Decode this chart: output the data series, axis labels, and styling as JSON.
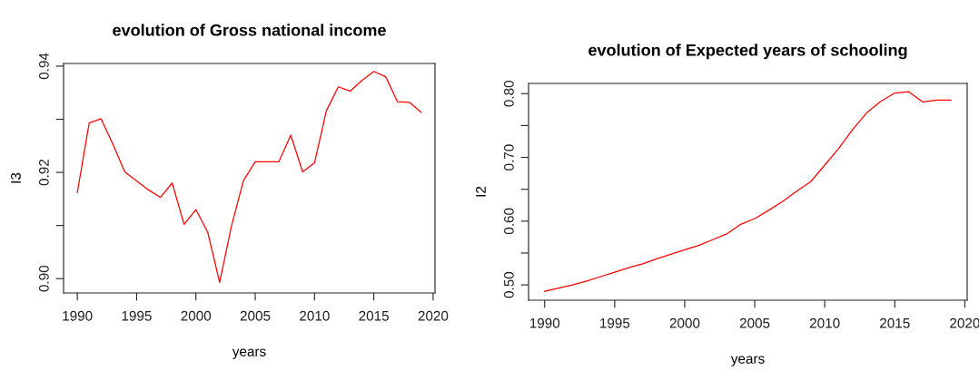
{
  "chart_data": [
    {
      "type": "line",
      "title": "evolution of Gross national income",
      "xlabel": "years",
      "ylabel": "I3",
      "x": [
        1990,
        1991,
        1992,
        1993,
        1994,
        1995,
        1996,
        1997,
        1998,
        1999,
        2000,
        2001,
        2002,
        2003,
        2004,
        2005,
        2006,
        2007,
        2008,
        2009,
        2010,
        2011,
        2012,
        2013,
        2014,
        2015,
        2016,
        2017,
        2018,
        2019
      ],
      "series": [
        {
          "color": "#ff0000",
          "values": [
            0.9162,
            0.9293,
            0.9301,
            0.9253,
            0.9201,
            0.9184,
            0.9167,
            0.9153,
            0.918,
            0.9102,
            0.913,
            0.9087,
            0.8993,
            0.9099,
            0.9184,
            0.922,
            0.922,
            0.922,
            0.927,
            0.9201,
            0.9218,
            0.9316,
            0.9361,
            0.9353,
            0.9373,
            0.939,
            0.938,
            0.9333,
            0.9332,
            0.9313
          ]
        }
      ],
      "xlim": [
        1988.84,
        2020.16
      ],
      "ylim": [
        0.8973,
        0.9405
      ],
      "xticks": [
        1990,
        1995,
        2000,
        2005,
        2010,
        2015,
        2020
      ],
      "yticks": [
        {
          "value": 0.9,
          "label": "0.90"
        },
        {
          "value": 0.91,
          "label": null
        },
        {
          "value": 0.92,
          "label": "0.92"
        },
        {
          "value": 0.93,
          "label": null
        },
        {
          "value": 0.94,
          "label": "0.94"
        }
      ],
      "grid": false,
      "marker": "none",
      "line_style": "solid"
    },
    {
      "type": "line",
      "title": "evolution of Expected years of schooling",
      "xlabel": "years",
      "ylabel": "I2",
      "x": [
        1990,
        1991,
        1992,
        1993,
        1994,
        1995,
        1996,
        1997,
        1998,
        1999,
        2000,
        2001,
        2002,
        2003,
        2004,
        2005,
        2006,
        2007,
        2008,
        2009,
        2010,
        2011,
        2012,
        2013,
        2014,
        2015,
        2016,
        2017,
        2018,
        2019
      ],
      "series": [
        {
          "color": "#ff0000",
          "values": [
            0.49,
            0.495,
            0.5,
            0.506,
            0.513,
            0.52,
            0.527,
            0.533,
            0.541,
            0.548,
            0.555,
            0.562,
            0.571,
            0.58,
            0.595,
            0.604,
            0.617,
            0.631,
            0.647,
            0.662,
            0.688,
            0.714,
            0.744,
            0.77,
            0.788,
            0.801,
            0.803,
            0.787,
            0.79,
            0.79
          ]
        }
      ],
      "xlim": [
        1988.85,
        2020.17
      ],
      "ylim": [
        0.476,
        0.816
      ],
      "xticks": [
        1990,
        1995,
        2000,
        2005,
        2010,
        2015,
        2020
      ],
      "yticks": [
        {
          "value": 0.5,
          "label": "0.50"
        },
        {
          "value": 0.55,
          "label": null
        },
        {
          "value": 0.6,
          "label": "0.60"
        },
        {
          "value": 0.65,
          "label": null
        },
        {
          "value": 0.7,
          "label": "0.70"
        },
        {
          "value": 0.75,
          "label": null
        },
        {
          "value": 0.8,
          "label": "0.80"
        }
      ],
      "grid": false,
      "marker": "none",
      "line_style": "solid"
    }
  ]
}
